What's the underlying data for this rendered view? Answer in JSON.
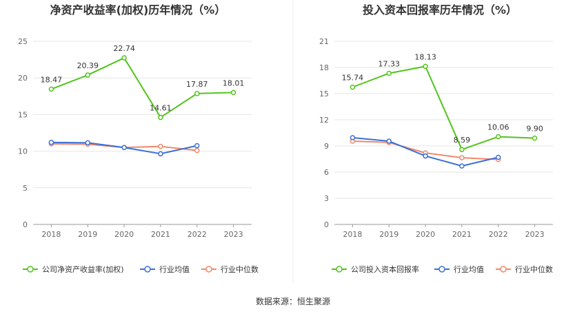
{
  "source": "数据来源：恒生聚源",
  "colors": {
    "company": "#52c41a",
    "avg": "#3b6fd6",
    "median": "#f0876a",
    "grid": "#e6e6e6",
    "axis": "#999999"
  },
  "chart_data": [
    {
      "type": "line",
      "title": "净资产收益率(加权)历年情况（%）",
      "categories": [
        "2018",
        "2019",
        "2020",
        "2021",
        "2022",
        "2023"
      ],
      "ylim": [
        0,
        25
      ],
      "yticks": [
        0,
        5,
        10,
        15,
        20,
        25
      ],
      "legend_position": "bottom",
      "grid": true,
      "series": [
        {
          "name": "公司净资产收益率(加权)",
          "values": [
            18.47,
            20.39,
            22.74,
            14.61,
            17.87,
            18.01
          ],
          "labels": [
            "18.47",
            "20.39",
            "22.74",
            "14.61",
            "17.87",
            "18.01"
          ]
        },
        {
          "name": "行业均值",
          "values": [
            11.2,
            11.15,
            10.5,
            9.65,
            10.75,
            null
          ]
        },
        {
          "name": "行业中位数",
          "values": [
            11.0,
            10.95,
            10.5,
            10.65,
            10.1,
            null
          ]
        }
      ]
    },
    {
      "type": "line",
      "title": "投入资本回报率历年情况（%）",
      "categories": [
        "2018",
        "2019",
        "2020",
        "2021",
        "2022",
        "2023"
      ],
      "ylim": [
        0,
        21
      ],
      "yticks": [
        0,
        3,
        6,
        9,
        12,
        15,
        18,
        21
      ],
      "legend_position": "bottom",
      "grid": true,
      "series": [
        {
          "name": "公司投入资本回报率",
          "values": [
            15.74,
            17.33,
            18.13,
            8.59,
            10.06,
            9.9
          ],
          "labels": [
            "15.74",
            "17.33",
            "18.13",
            "8.59",
            "10.06",
            "9.90"
          ]
        },
        {
          "name": "行业均值",
          "values": [
            9.95,
            9.55,
            7.85,
            6.7,
            7.7,
            null
          ]
        },
        {
          "name": "行业中位数",
          "values": [
            9.55,
            9.4,
            8.2,
            7.65,
            7.45,
            null
          ]
        }
      ]
    }
  ]
}
